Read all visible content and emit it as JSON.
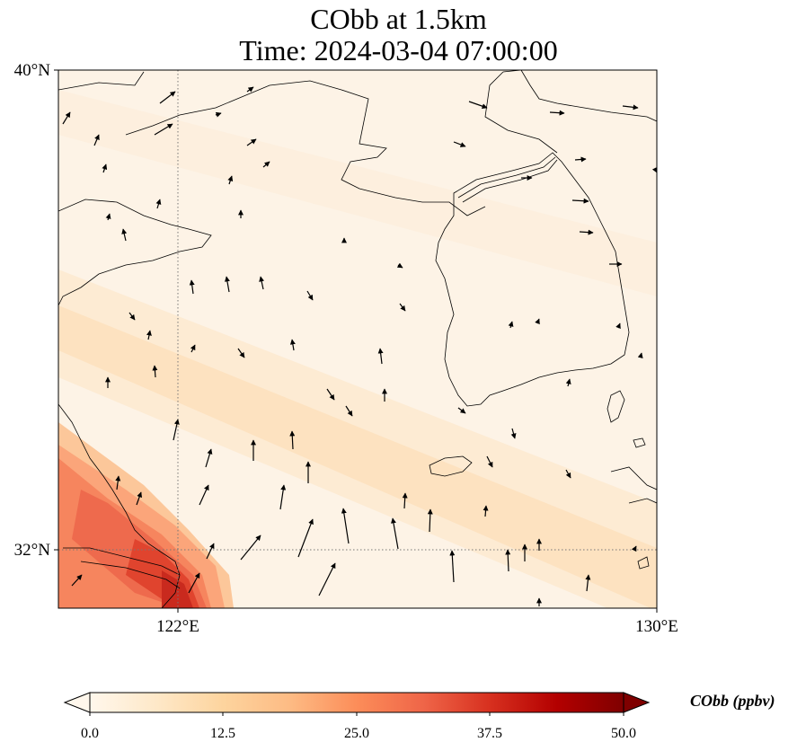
{
  "title": {
    "line1": "CObb at 1.5km",
    "line2": "Time: 2024-03-04 07:00:00"
  },
  "map": {
    "projection": "PlateCarree",
    "lat_labels": [
      "40°N",
      "32°N"
    ],
    "lon_labels": [
      "122°E",
      "130°E"
    ],
    "gridlines": "dotted grey at 122°E and 32°N",
    "background_color": "#fdf3e6",
    "coastline_color": "#000000"
  },
  "colorbar": {
    "label": "CObb (ppbv)",
    "ticks": [
      "0.0",
      "12.5",
      "25.0",
      "37.5",
      "50.0"
    ],
    "vmin": 0,
    "vmax": 50,
    "colormap": "OrRd",
    "extend": "both",
    "colors": [
      "#fff7ec",
      "#fee8c8",
      "#fdd49e",
      "#fdbb84",
      "#fc8d59",
      "#ef6548",
      "#d7301f",
      "#b30000",
      "#7f0000"
    ]
  },
  "field": {
    "description": "carbon monoxide from biomass burning concentration",
    "max_region": "southwest corner near 121-122.5°E, 31.2-32.5°N",
    "max_value_estimate": 38,
    "band_value_estimate": 10,
    "background_value_estimate": 2
  },
  "wind_vectors": {
    "shown": true,
    "color": "#000000"
  }
}
